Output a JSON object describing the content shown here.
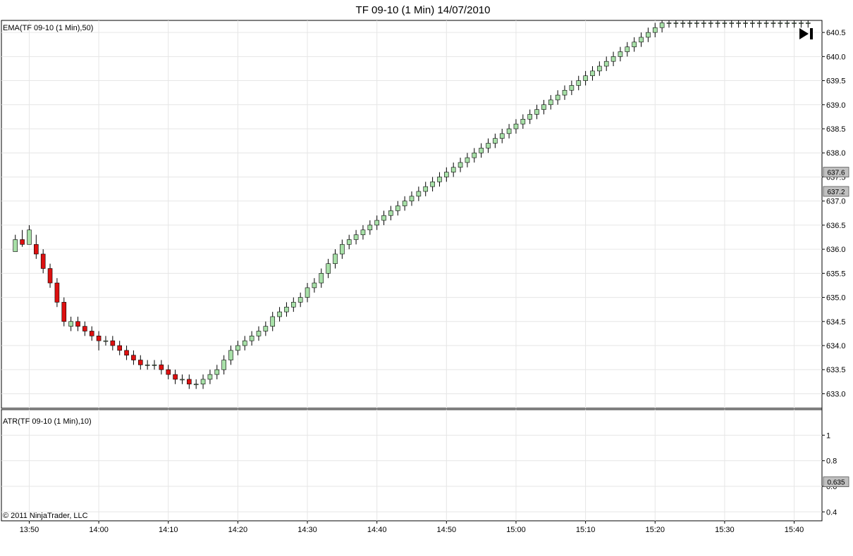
{
  "title": "TF 09-10 (1 Min)  14/07/2010",
  "copyright": "© 2011 NinjaTrader, LLC",
  "colors": {
    "up": "#a8e0a8",
    "down": "#dd1010",
    "ema": "#f0a030",
    "atr": "#2e9a2e",
    "entry": "#e020e0",
    "exit": "#1010e0",
    "badge": "#c0c0c0"
  },
  "icons": {
    "go_latest": "skip-to-end-icon"
  },
  "chart_data": [
    {
      "type": "candlestick",
      "indicator": "EMA(TF 09-10 (1 Min),50)",
      "ylim": [
        632.7,
        640.75
      ],
      "y_ticks": [
        "640.5",
        "640.0",
        "639.5",
        "639.0",
        "638.5",
        "638.0",
        "637.5",
        "637.0",
        "636.5",
        "636.0",
        "635.5",
        "635.0",
        "634.5",
        "634.0",
        "633.5",
        "633.0"
      ],
      "x_ticks": [
        "13:50",
        "14:00",
        "14:10",
        "14:20",
        "14:30",
        "14:40",
        "14:50",
        "15:00",
        "15:10",
        "15:20",
        "15:30",
        "15:40"
      ],
      "x_tick_minutes": [
        -10,
        0,
        10,
        20,
        30,
        40,
        50,
        60,
        70,
        80,
        90,
        100
      ],
      "grid": true,
      "price_badges": [
        {
          "label": "637.6",
          "value": 637.6
        },
        {
          "label": "637.2",
          "value": 637.2
        }
      ],
      "candles": [
        [
          -12,
          635.95,
          636.3,
          635.95,
          636.2
        ],
        [
          -11,
          636.2,
          636.4,
          636.05,
          636.1
        ],
        [
          -10,
          636.1,
          636.5,
          636.1,
          636.4
        ],
        [
          -9,
          636.1,
          636.3,
          635.8,
          635.9
        ],
        [
          -8,
          635.9,
          636.0,
          635.5,
          635.6
        ],
        [
          -7,
          635.6,
          635.7,
          635.2,
          635.3
        ],
        [
          -6,
          635.3,
          635.4,
          634.8,
          634.9
        ],
        [
          -5,
          634.9,
          635.0,
          634.4,
          634.5
        ],
        [
          -4,
          634.4,
          634.6,
          634.3,
          634.5
        ],
        [
          -3,
          634.5,
          634.6,
          634.3,
          634.4
        ],
        [
          -2,
          634.4,
          634.5,
          634.2,
          634.3
        ],
        [
          -1,
          634.3,
          634.4,
          634.1,
          634.2
        ],
        [
          0,
          634.2,
          634.3,
          633.9,
          634.1
        ],
        [
          1,
          634.1,
          634.2,
          634.0,
          634.1
        ],
        [
          2,
          634.1,
          634.2,
          633.9,
          634.0
        ],
        [
          3,
          634.0,
          634.1,
          633.8,
          633.9
        ],
        [
          4,
          633.9,
          634.0,
          633.7,
          633.8
        ],
        [
          5,
          633.8,
          633.9,
          633.6,
          633.7
        ],
        [
          6,
          633.7,
          633.8,
          633.5,
          633.6
        ],
        [
          7,
          633.6,
          633.7,
          633.5,
          633.6
        ],
        [
          8,
          633.6,
          633.7,
          633.5,
          633.6
        ],
        [
          9,
          633.6,
          633.7,
          633.4,
          633.5
        ],
        [
          10,
          633.5,
          633.6,
          633.3,
          633.4
        ],
        [
          11,
          633.4,
          633.5,
          633.2,
          633.3
        ],
        [
          12,
          633.3,
          633.4,
          633.2,
          633.3
        ],
        [
          13,
          633.3,
          633.4,
          633.1,
          633.2
        ],
        [
          14,
          633.2,
          633.3,
          633.1,
          633.2
        ],
        [
          15,
          633.2,
          633.4,
          633.1,
          633.3
        ],
        [
          16,
          633.3,
          633.5,
          633.2,
          633.4
        ],
        [
          17,
          633.4,
          633.6,
          633.3,
          633.5
        ],
        [
          18,
          633.5,
          633.8,
          633.4,
          633.7
        ],
        [
          19,
          633.7,
          634.0,
          633.6,
          633.9
        ],
        [
          20,
          633.9,
          634.1,
          633.8,
          634.0
        ],
        [
          21,
          634.0,
          634.2,
          633.9,
          634.1
        ],
        [
          22,
          634.1,
          634.3,
          634.0,
          634.2
        ],
        [
          23,
          634.2,
          634.4,
          634.1,
          634.3
        ],
        [
          24,
          634.3,
          634.5,
          634.2,
          634.4
        ],
        [
          25,
          634.4,
          634.7,
          634.3,
          634.6
        ],
        [
          26,
          634.6,
          634.8,
          634.5,
          634.7
        ],
        [
          27,
          634.7,
          634.9,
          634.6,
          634.8
        ],
        [
          28,
          634.8,
          635.0,
          634.7,
          634.9
        ],
        [
          29,
          634.9,
          635.1,
          634.8,
          635.0
        ],
        [
          30,
          635.0,
          635.3,
          634.9,
          635.2
        ],
        [
          31,
          635.2,
          635.4,
          635.1,
          635.3
        ],
        [
          32,
          635.3,
          635.6,
          635.2,
          635.5
        ],
        [
          33,
          635.5,
          635.8,
          635.4,
          635.7
        ],
        [
          34,
          635.7,
          636.0,
          635.6,
          635.9
        ],
        [
          35,
          635.9,
          636.2,
          635.8,
          636.1
        ],
        [
          36,
          636.1,
          636.3,
          636.0,
          636.2
        ],
        [
          37,
          636.2,
          636.4,
          636.1,
          636.3
        ],
        [
          38,
          636.3,
          636.5,
          636.2,
          636.4
        ],
        [
          39,
          636.4,
          636.6,
          636.3,
          636.5
        ],
        [
          40,
          636.5,
          636.7,
          636.4,
          636.6
        ],
        [
          41,
          636.6,
          636.8,
          636.5,
          636.7
        ],
        [
          42,
          636.7,
          636.9,
          636.6,
          636.8
        ],
        [
          43,
          636.8,
          637.0,
          636.7,
          636.9
        ],
        [
          44,
          636.9,
          637.1,
          636.8,
          637.0
        ],
        [
          45,
          637.0,
          637.2,
          636.9,
          637.1
        ],
        [
          46,
          637.1,
          637.3,
          637.0,
          637.2
        ],
        [
          47,
          637.2,
          637.4,
          637.1,
          637.3
        ],
        [
          48,
          637.3,
          637.5,
          637.2,
          637.4
        ],
        [
          49,
          637.4,
          637.6,
          637.3,
          637.5
        ],
        [
          50,
          637.5,
          637.7,
          637.4,
          637.6
        ],
        [
          51,
          637.6,
          637.8,
          637.5,
          637.7
        ],
        [
          52,
          637.7,
          637.9,
          637.6,
          637.8
        ],
        [
          53,
          637.8,
          638.0,
          637.7,
          637.9
        ],
        [
          54,
          637.9,
          638.1,
          637.8,
          638.0
        ],
        [
          55,
          638.0,
          638.2,
          637.9,
          638.1
        ],
        [
          56,
          638.1,
          638.3,
          638.0,
          638.2
        ],
        [
          57,
          638.2,
          638.4,
          638.1,
          638.3
        ],
        [
          58,
          638.3,
          638.5,
          638.2,
          638.4
        ],
        [
          59,
          638.4,
          638.6,
          638.3,
          638.5
        ],
        [
          60,
          638.5,
          638.7,
          638.4,
          638.6
        ],
        [
          61,
          638.6,
          638.8,
          638.5,
          638.7
        ],
        [
          62,
          638.7,
          638.9,
          638.6,
          638.8
        ],
        [
          63,
          638.8,
          639.0,
          638.7,
          638.9
        ],
        [
          64,
          638.9,
          639.1,
          638.8,
          639.0
        ],
        [
          65,
          639.0,
          639.2,
          638.9,
          639.1
        ],
        [
          66,
          639.1,
          639.3,
          639.0,
          639.2
        ],
        [
          67,
          639.2,
          639.4,
          639.1,
          639.3
        ],
        [
          68,
          639.3,
          639.5,
          639.2,
          639.4
        ],
        [
          69,
          639.4,
          639.6,
          639.3,
          639.5
        ],
        [
          70,
          639.5,
          639.7,
          639.4,
          639.6
        ],
        [
          71,
          639.6,
          639.8,
          639.5,
          639.7
        ],
        [
          72,
          639.7,
          639.9,
          639.6,
          639.8
        ],
        [
          73,
          639.8,
          640.0,
          639.7,
          639.9
        ],
        [
          74,
          639.9,
          640.1,
          639.8,
          640.0
        ],
        [
          75,
          640.0,
          640.2,
          639.9,
          640.1
        ],
        [
          76,
          640.1,
          640.3,
          640.0,
          640.2
        ],
        [
          77,
          640.2,
          640.4,
          640.1,
          640.3
        ],
        [
          78,
          640.3,
          640.5,
          640.2,
          640.4
        ],
        [
          79,
          640.4,
          640.6,
          640.3,
          640.5
        ],
        [
          80,
          640.5,
          640.7,
          640.4,
          640.6
        ],
        [
          81,
          640.6,
          640.75,
          640.5,
          640.7
        ],
        [
          82,
          640.7,
          640.75,
          640.6,
          640.7
        ],
        [
          83,
          640.7,
          640.75,
          640.6,
          640.7
        ],
        [
          84,
          640.7,
          640.75,
          640.6,
          640.7
        ],
        [
          85,
          640.7,
          640.75,
          640.6,
          640.7
        ],
        [
          86,
          640.7,
          640.75,
          640.6,
          640.7
        ],
        [
          87,
          640.7,
          640.75,
          640.6,
          640.7
        ],
        [
          88,
          640.7,
          640.75,
          640.6,
          640.7
        ],
        [
          89,
          640.7,
          640.75,
          640.6,
          640.7
        ],
        [
          90,
          640.7,
          640.75,
          640.6,
          640.7
        ],
        [
          91,
          640.7,
          640.75,
          640.6,
          640.7
        ],
        [
          92,
          640.7,
          640.75,
          640.6,
          640.7
        ],
        [
          93,
          640.7,
          640.75,
          640.6,
          640.7
        ],
        [
          94,
          640.7,
          640.75,
          640.6,
          640.7
        ],
        [
          95,
          640.7,
          640.75,
          640.6,
          640.7
        ],
        [
          96,
          640.7,
          640.75,
          640.6,
          640.7
        ],
        [
          97,
          640.7,
          640.75,
          640.6,
          640.7
        ],
        [
          98,
          640.7,
          640.75,
          640.6,
          640.7
        ],
        [
          99,
          640.7,
          640.75,
          640.6,
          640.7
        ],
        [
          100,
          640.7,
          640.75,
          640.6,
          640.7
        ],
        [
          101,
          640.7,
          640.75,
          640.6,
          640.7
        ],
        [
          102,
          640.7,
          640.75,
          640.6,
          640.7
        ]
      ],
      "ema": [],
      "trades": [],
      "labels": []
    },
    {
      "type": "line",
      "indicator": "ATR(TF 09-10 (1 Min),10)",
      "ylim": [
        0.33,
        1.2
      ],
      "y_ticks": [
        "1",
        "0.8",
        "0.6",
        "0.4"
      ],
      "badge": {
        "label": "0.635",
        "value": 0.635
      },
      "x": [],
      "values": []
    }
  ]
}
